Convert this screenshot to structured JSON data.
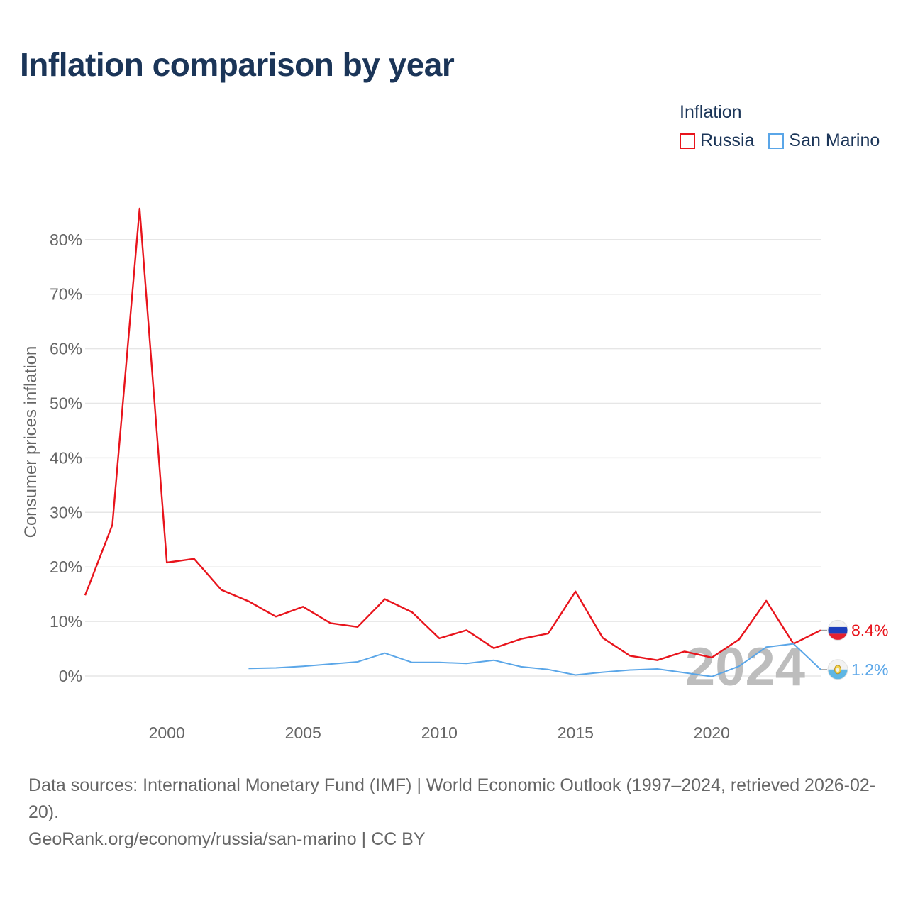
{
  "title": "Inflation comparison by year",
  "legend": {
    "title": "Inflation",
    "items": [
      {
        "name": "Russia",
        "color": "#e8141c"
      },
      {
        "name": "San Marino",
        "color": "#5aa6e8"
      }
    ]
  },
  "chart_data": {
    "type": "line",
    "title": "Inflation comparison by year",
    "xlabel": "",
    "ylabel": "Consumer prices inflation",
    "xlim": [
      1997,
      2024
    ],
    "ylim": [
      -5,
      88
    ],
    "yticks": [
      0,
      10,
      20,
      30,
      40,
      50,
      60,
      70,
      80
    ],
    "ytick_labels": [
      "0%",
      "10%",
      "20%",
      "30%",
      "40%",
      "50%",
      "60%",
      "70%",
      "80%"
    ],
    "xticks": [
      2000,
      2005,
      2010,
      2015,
      2020
    ],
    "xtick_labels": [
      "2000",
      "2005",
      "2010",
      "2015",
      "2020"
    ],
    "grid": true,
    "watermark_year": "2024",
    "series": [
      {
        "name": "Russia",
        "color": "#e8141c",
        "x": [
          1997,
          1998,
          1999,
          2000,
          2001,
          2002,
          2003,
          2004,
          2005,
          2006,
          2007,
          2008,
          2009,
          2010,
          2011,
          2012,
          2013,
          2014,
          2015,
          2016,
          2017,
          2018,
          2019,
          2020,
          2021,
          2022,
          2023,
          2024
        ],
        "values": [
          14.8,
          27.7,
          85.7,
          20.8,
          21.5,
          15.8,
          13.7,
          10.9,
          12.7,
          9.7,
          9.0,
          14.1,
          11.7,
          6.9,
          8.4,
          5.1,
          6.8,
          7.8,
          15.5,
          7.0,
          3.7,
          2.9,
          4.5,
          3.4,
          6.7,
          13.8,
          5.9,
          8.4
        ],
        "end_label": "8.4%"
      },
      {
        "name": "San Marino",
        "color": "#5aa6e8",
        "x": [
          2003,
          2004,
          2005,
          2006,
          2007,
          2008,
          2009,
          2010,
          2011,
          2012,
          2013,
          2014,
          2015,
          2016,
          2017,
          2018,
          2019,
          2020,
          2021,
          2022,
          2023,
          2024
        ],
        "values": [
          1.4,
          1.5,
          1.8,
          2.2,
          2.6,
          4.2,
          2.5,
          2.5,
          2.3,
          2.9,
          1.7,
          1.2,
          0.2,
          0.7,
          1.1,
          1.3,
          0.6,
          -0.1,
          1.8,
          5.3,
          5.9,
          1.2
        ],
        "end_label": "1.2%"
      }
    ]
  },
  "footer": {
    "sources": "Data sources: International Monetary Fund (IMF) | World Economic Outlook (1997–2024, retrieved 2026-02-20).",
    "credit": "GeoRank.org/economy/russia/san-marino | CC BY"
  }
}
